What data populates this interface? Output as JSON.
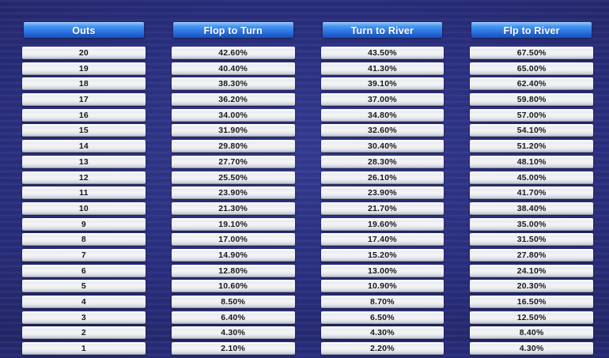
{
  "chart_data": {
    "type": "table",
    "title": "Poker outs odds table",
    "columns": [
      "Outs",
      "Flop to Turn",
      "Turn to River",
      "Flp to River"
    ],
    "rows": [
      [
        "20",
        "42.60%",
        "43.50%",
        "67.50%"
      ],
      [
        "19",
        "40.40%",
        "41.30%",
        "65.00%"
      ],
      [
        "18",
        "38.30%",
        "39.10%",
        "62.40%"
      ],
      [
        "17",
        "36.20%",
        "37.00%",
        "59.80%"
      ],
      [
        "16",
        "34.00%",
        "34.80%",
        "57.00%"
      ],
      [
        "15",
        "31.90%",
        "32.60%",
        "54.10%"
      ],
      [
        "14",
        "29.80%",
        "30.40%",
        "51.20%"
      ],
      [
        "13",
        "27.70%",
        "28.30%",
        "48.10%"
      ],
      [
        "12",
        "25.50%",
        "26.10%",
        "45.00%"
      ],
      [
        "11",
        "23.90%",
        "23.90%",
        "41.70%"
      ],
      [
        "10",
        "21.30%",
        "21.70%",
        "38.40%"
      ],
      [
        "9",
        "19.10%",
        "19.60%",
        "35.00%"
      ],
      [
        "8",
        "17.00%",
        "17.40%",
        "31.50%"
      ],
      [
        "7",
        "14.90%",
        "15.20%",
        "27.80%"
      ],
      [
        "6",
        "12.80%",
        "13.00%",
        "24.10%"
      ],
      [
        "5",
        "10.60%",
        "10.90%",
        "20.30%"
      ],
      [
        "4",
        "8.50%",
        "8.70%",
        "16.50%"
      ],
      [
        "3",
        "6.40%",
        "6.50%",
        "12.50%"
      ],
      [
        "2",
        "4.30%",
        "4.30%",
        "8.40%"
      ],
      [
        "1",
        "2.10%",
        "2.20%",
        "4.30%"
      ]
    ]
  },
  "table": {
    "columns": [
      {
        "header": "Outs",
        "values": [
          "20",
          "19",
          "18",
          "17",
          "16",
          "15",
          "14",
          "13",
          "12",
          "11",
          "10",
          "9",
          "8",
          "7",
          "6",
          "5",
          "4",
          "3",
          "2",
          "1"
        ]
      },
      {
        "header": "Flop to Turn",
        "values": [
          "42.60%",
          "40.40%",
          "38.30%",
          "36.20%",
          "34.00%",
          "31.90%",
          "29.80%",
          "27.70%",
          "25.50%",
          "23.90%",
          "21.30%",
          "19.10%",
          "17.00%",
          "14.90%",
          "12.80%",
          "10.60%",
          "8.50%",
          "6.40%",
          "4.30%",
          "2.10%"
        ]
      },
      {
        "header": "Turn to River",
        "values": [
          "43.50%",
          "41.30%",
          "39.10%",
          "37.00%",
          "34.80%",
          "32.60%",
          "30.40%",
          "28.30%",
          "26.10%",
          "23.90%",
          "21.70%",
          "19.60%",
          "17.40%",
          "15.20%",
          "13.00%",
          "10.90%",
          "8.70%",
          "6.50%",
          "4.30%",
          "2.20%"
        ]
      },
      {
        "header": "Flp to River",
        "values": [
          "67.50%",
          "65.00%",
          "62.40%",
          "59.80%",
          "57.00%",
          "54.10%",
          "51.20%",
          "48.10%",
          "45.00%",
          "41.70%",
          "38.40%",
          "35.00%",
          "31.50%",
          "27.80%",
          "24.10%",
          "20.30%",
          "16.50%",
          "12.50%",
          "8.40%",
          "4.30%"
        ]
      }
    ]
  },
  "colors": {
    "background_navy": "#2b3080",
    "background_edge": "#191c50",
    "header_blue_top": "#7fc1fa",
    "header_blue_bottom": "#1650b8",
    "header_text": "#ffffff",
    "cell_silver_top": "#fefefe",
    "cell_silver_bottom": "#c3c8d2",
    "cell_text": "#16161c"
  }
}
